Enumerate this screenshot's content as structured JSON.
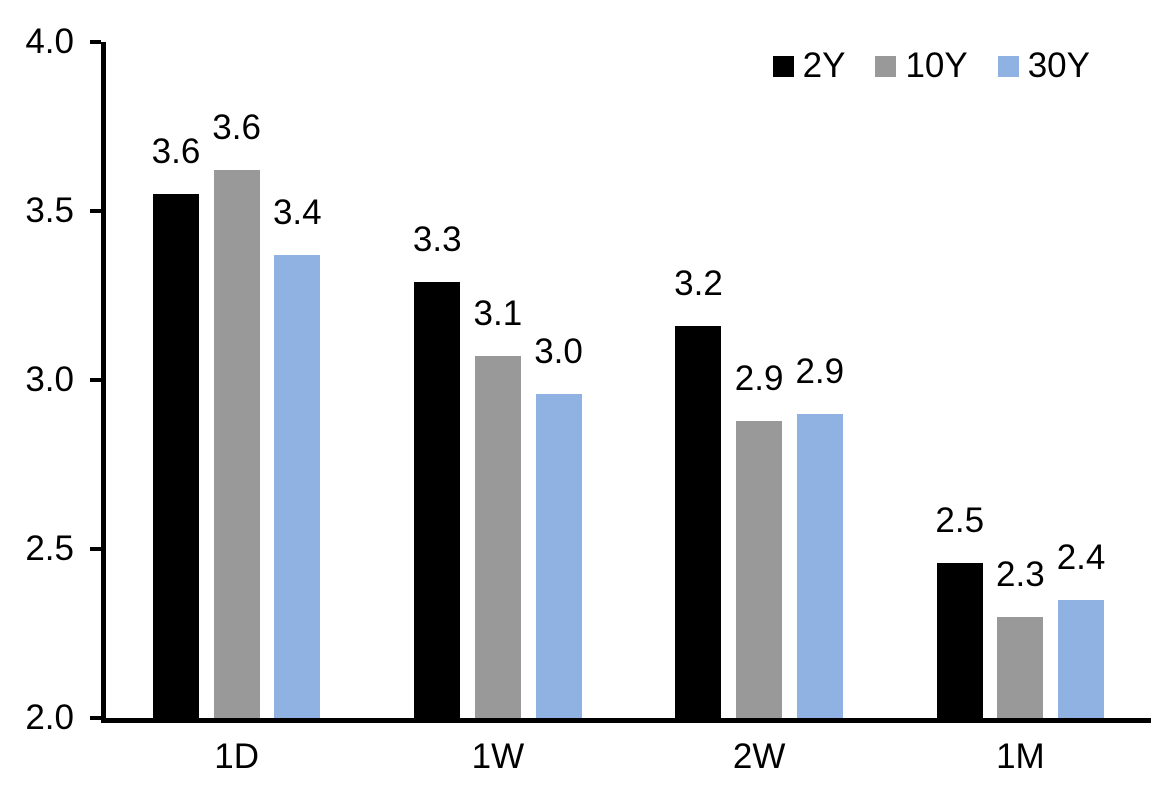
{
  "chart_data": {
    "type": "bar",
    "title": "",
    "xlabel": "",
    "ylabel": "",
    "categories": [
      "1D",
      "1W",
      "2W",
      "1M"
    ],
    "series": [
      {
        "name": "2Y",
        "color": "#000000",
        "values": [
          3.55,
          3.29,
          3.16,
          2.46
        ],
        "labels": [
          "3.6",
          "3.3",
          "3.2",
          "2.5"
        ]
      },
      {
        "name": "10Y",
        "color": "#999999",
        "values": [
          3.62,
          3.07,
          2.88,
          2.3
        ],
        "labels": [
          "3.6",
          "3.1",
          "2.9",
          "2.3"
        ]
      },
      {
        "name": "30Y",
        "color": "#8FB2E3",
        "values": [
          3.37,
          2.96,
          2.9,
          2.35
        ],
        "labels": [
          "3.4",
          "3.0",
          "2.9",
          "2.4"
        ]
      }
    ],
    "ylim": [
      2.0,
      4.0
    ],
    "yticks": [
      "4.0",
      "3.5",
      "3.0",
      "2.5",
      "2.0"
    ],
    "grid": false,
    "legend_position": "top-right",
    "axis_color": "#000000",
    "text_color": "#000000",
    "background_color": "#FFFFFF"
  }
}
